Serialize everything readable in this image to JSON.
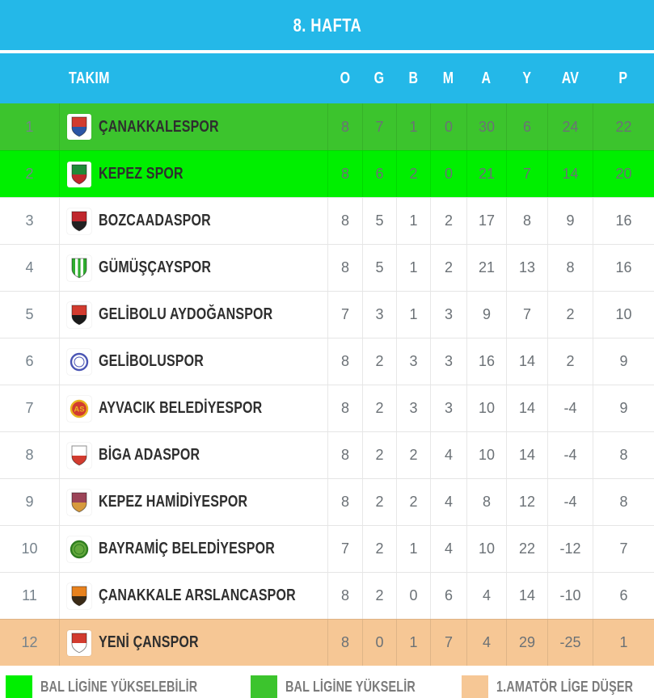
{
  "title": "8. HAFTA",
  "table": {
    "team_header": "TAKIM",
    "stat_columns": [
      "O",
      "G",
      "B",
      "M",
      "A",
      "Y",
      "AV",
      "P"
    ],
    "rows": [
      {
        "pos": "1",
        "name": "ÇANAKKALESPOR",
        "stats": [
          "8",
          "7",
          "1",
          "0",
          "30",
          "6",
          "24",
          "22"
        ],
        "status": "promotion",
        "logo": {
          "shape": "shield",
          "colors": [
            "#d23b2f",
            "#2b55a5"
          ]
        }
      },
      {
        "pos": "2",
        "name": "KEPEZ SPOR",
        "stats": [
          "8",
          "6",
          "2",
          "0",
          "21",
          "7",
          "14",
          "20"
        ],
        "status": "possible_promotion",
        "logo": {
          "shape": "shield",
          "colors": [
            "#1f8a38",
            "#c0272d"
          ]
        }
      },
      {
        "pos": "3",
        "name": "BOZCAADASPOR",
        "stats": [
          "8",
          "5",
          "1",
          "2",
          "17",
          "8",
          "9",
          "16"
        ],
        "status": "none",
        "logo": {
          "shape": "shield",
          "colors": [
            "#c0272d",
            "#222222"
          ]
        }
      },
      {
        "pos": "4",
        "name": "GÜMÜŞÇAYSPOR",
        "stats": [
          "8",
          "5",
          "1",
          "2",
          "21",
          "13",
          "8",
          "16"
        ],
        "status": "none",
        "logo": {
          "shape": "stripes",
          "colors": [
            "#2fae2f",
            "#ffffff"
          ]
        }
      },
      {
        "pos": "5",
        "name": "GELİBOLU AYDOĞANSPOR",
        "stats": [
          "7",
          "3",
          "1",
          "3",
          "9",
          "7",
          "2",
          "10"
        ],
        "status": "none",
        "logo": {
          "shape": "shield",
          "colors": [
            "#d23b2f",
            "#1a1a1a"
          ]
        }
      },
      {
        "pos": "6",
        "name": "GELİBOLUSPOR",
        "stats": [
          "8",
          "2",
          "3",
          "3",
          "16",
          "14",
          "2",
          "9"
        ],
        "status": "none",
        "logo": {
          "shape": "circle",
          "colors": [
            "#ffffff",
            "#4a55b4"
          ]
        }
      },
      {
        "pos": "7",
        "name": "AYVACIK BELEDİYESPOR",
        "stats": [
          "8",
          "2",
          "3",
          "3",
          "10",
          "14",
          "-4",
          "9"
        ],
        "status": "none",
        "logo": {
          "shape": "circle",
          "colors": [
            "#d23b2f",
            "#e9b51f"
          ],
          "text": "AS"
        }
      },
      {
        "pos": "8",
        "name": "BİGA ADASPOR",
        "stats": [
          "8",
          "2",
          "2",
          "4",
          "10",
          "14",
          "-4",
          "8"
        ],
        "status": "none",
        "logo": {
          "shape": "shield",
          "colors": [
            "#ffffff",
            "#d23b2f"
          ]
        }
      },
      {
        "pos": "9",
        "name": "KEPEZ HAMİDİYESPOR",
        "stats": [
          "8",
          "2",
          "2",
          "4",
          "8",
          "12",
          "-4",
          "8"
        ],
        "status": "none",
        "logo": {
          "shape": "shield",
          "colors": [
            "#9c4458",
            "#d79a3d"
          ]
        }
      },
      {
        "pos": "10",
        "name": "BAYRAMİÇ BELEDİYESPOR",
        "stats": [
          "7",
          "2",
          "1",
          "4",
          "10",
          "22",
          "-12",
          "7"
        ],
        "status": "none",
        "logo": {
          "shape": "circle",
          "colors": [
            "#63a83c",
            "#2e7d1f"
          ]
        }
      },
      {
        "pos": "11",
        "name": "ÇANAKKALE ARSLANCASPOR",
        "stats": [
          "8",
          "2",
          "0",
          "6",
          "4",
          "14",
          "-10",
          "6"
        ],
        "status": "none",
        "logo": {
          "shape": "shield",
          "colors": [
            "#e8821e",
            "#3a2a16"
          ]
        }
      },
      {
        "pos": "12",
        "name": "YENİ ÇANSPOR",
        "stats": [
          "8",
          "0",
          "1",
          "7",
          "4",
          "29",
          "-25",
          "1"
        ],
        "status": "relegation",
        "logo": {
          "shape": "shield",
          "colors": [
            "#d23b2f",
            "#ffffff"
          ]
        }
      }
    ]
  },
  "legend": [
    {
      "label": "BAL LİGİNE YÜKSELEBİLİR",
      "color": "#00ef00"
    },
    {
      "label": "BAL LİGİNE YÜKSELİR",
      "color": "#3cc42d"
    },
    {
      "label": "1.AMATÖR LİGE DÜŞER",
      "color": "#f6c795"
    }
  ],
  "colors": {
    "header_band": "#24b8e8",
    "promotion": "#3cc42d",
    "possible_promotion": "#00ef00",
    "relegation": "#f6c795"
  }
}
